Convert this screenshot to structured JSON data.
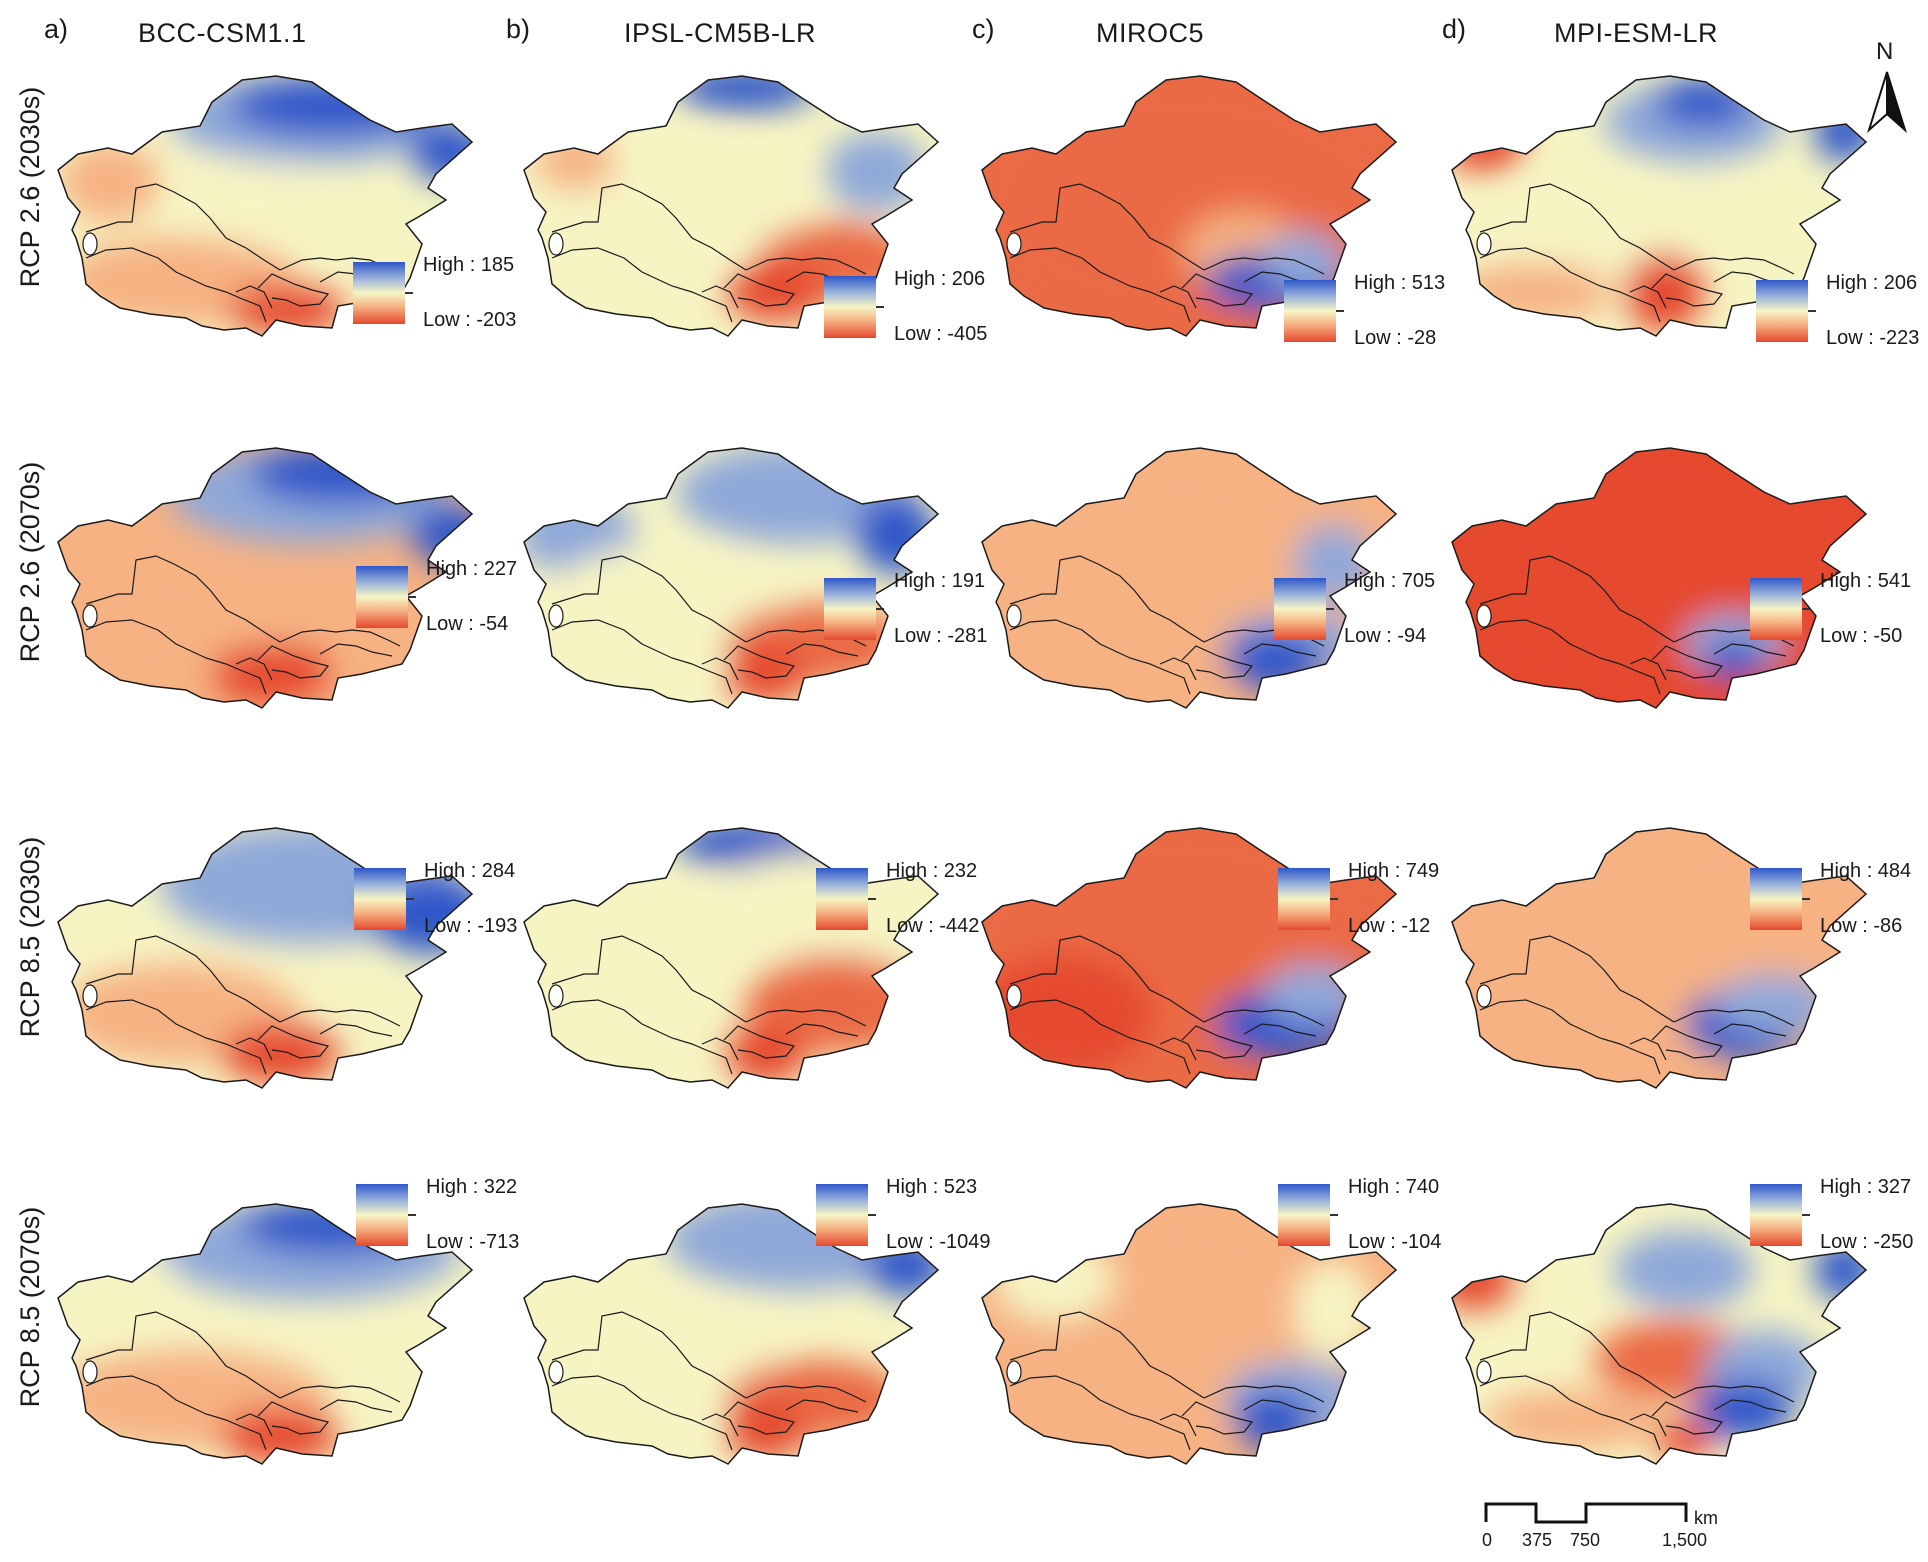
{
  "columns": [
    {
      "letter": "a)",
      "model": "BCC-CSM1.1"
    },
    {
      "letter": "b)",
      "model": "IPSL-CM5B-LR"
    },
    {
      "letter": "c)",
      "model": "MIROC5"
    },
    {
      "letter": "d)",
      "model": "MPI-ESM-LR"
    }
  ],
  "rows": [
    {
      "label": "RCP 2.6 (2030s)"
    },
    {
      "label": "RCP 2.6 (2070s)"
    },
    {
      "label": "RCP 8.5 (2030s)"
    },
    {
      "label": "RCP 8.5 (2070s)"
    }
  ],
  "legend_values": [
    [
      {
        "high": "High : 185",
        "low": "Low : -203"
      },
      {
        "high": "High : 206",
        "low": "Low : -405"
      },
      {
        "high": "High : 513",
        "low": "Low : -28"
      },
      {
        "high": "High : 206",
        "low": "Low : -223"
      }
    ],
    [
      {
        "high": "High : 227",
        "low": "Low : -54"
      },
      {
        "high": "High : 191",
        "low": "Low : -281"
      },
      {
        "high": "High : 705",
        "low": "Low : -94"
      },
      {
        "high": "High : 541",
        "low": "Low : -50"
      }
    ],
    [
      {
        "high": "High : 284",
        "low": "Low : -193"
      },
      {
        "high": "High : 232",
        "low": "Low : -442"
      },
      {
        "high": "High : 749",
        "low": "Low : -12"
      },
      {
        "high": "High : 484",
        "low": "Low : -86"
      }
    ],
    [
      {
        "high": "High : 322",
        "low": "Low : -713"
      },
      {
        "high": "High : 523",
        "low": "Low : -1049"
      },
      {
        "high": "High : 740",
        "low": "Low : -104"
      },
      {
        "high": "High : 327",
        "low": "Low : -250"
      }
    ]
  ],
  "north_arrow": {
    "letter": "N"
  },
  "scale_bar": {
    "unit": "km",
    "ticks": [
      "0",
      "375",
      "750",
      "1,500"
    ]
  },
  "colors": {
    "high": "#2f57c9",
    "mid": "#f7f4c4",
    "low": "#e5482e",
    "border": "#1a1a1a"
  }
}
